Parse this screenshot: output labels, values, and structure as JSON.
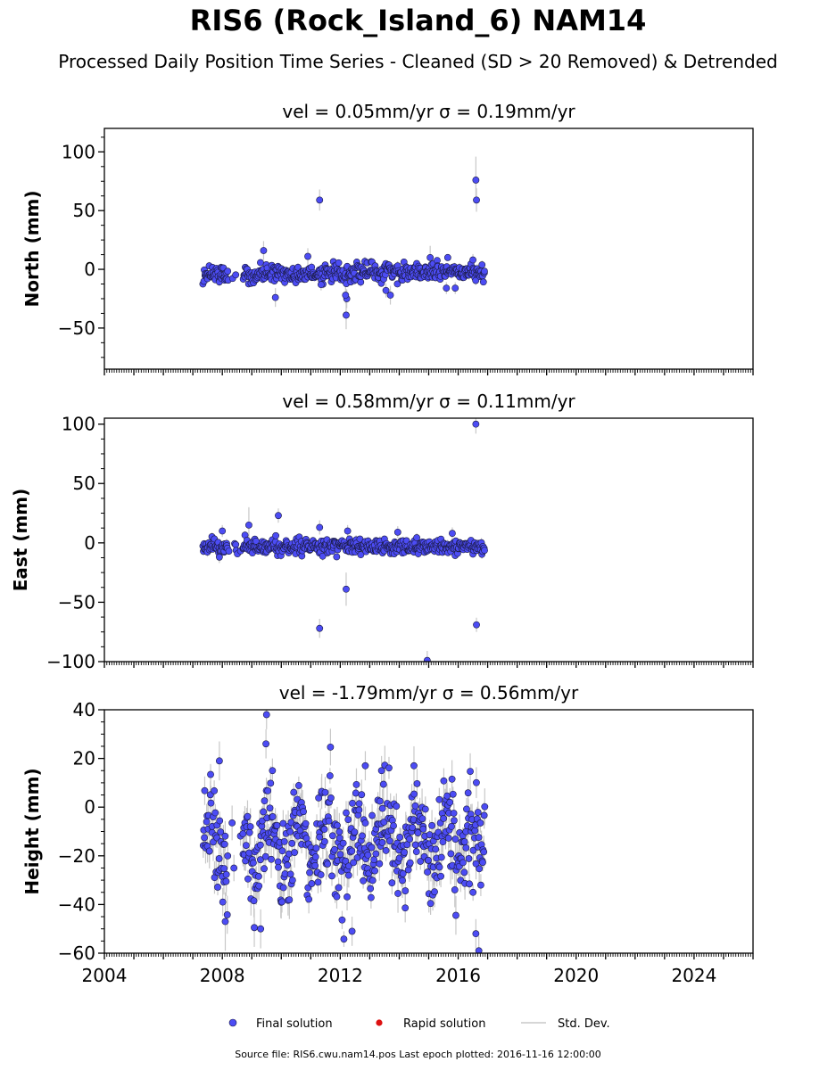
{
  "title": "RIS6 (Rock_Island_6) NAM14",
  "subtitle": "Processed Daily Position Time Series - Cleaned (SD > 20 Removed) & Detrended",
  "footer": "Source file: RIS6.cwu.nam14.pos  Last epoch plotted: 2016-11-16 12:00:00",
  "colors": {
    "final": "#4c4cf4",
    "rapid": "#dd1111",
    "std": "#c8c8c8",
    "outline": "#1a1a40"
  },
  "legend": {
    "placement": "bottom-center",
    "final": "Final solution",
    "rapid": "Rapid solution",
    "std": "Std. Dev."
  },
  "chart_data": [
    {
      "type": "scatter",
      "panel": "north",
      "title": "vel = 0.05mm/yr   σ = 0.19mm/yr",
      "ylabel": "North (mm)",
      "xlim": [
        2004,
        2026
      ],
      "ylim": [
        -85,
        120
      ],
      "yticks": [
        -50,
        0,
        50,
        100
      ],
      "ytick_labels": [
        "−50",
        "0",
        "50",
        "100"
      ],
      "x_range": [
        2007.35,
        2016.9
      ],
      "band_center": -3,
      "band_spread": 3.5,
      "outliers": [
        {
          "x": 2011.3,
          "y": 59,
          "err": 9
        },
        {
          "x": 2016.6,
          "y": 76,
          "err": 20
        },
        {
          "x": 2016.62,
          "y": 59,
          "err": 10
        },
        {
          "x": 2012.2,
          "y": -39,
          "err": 12
        },
        {
          "x": 2012.22,
          "y": -25,
          "err": 8
        },
        {
          "x": 2012.18,
          "y": -22,
          "err": 7
        },
        {
          "x": 2009.8,
          "y": -24,
          "err": 8
        },
        {
          "x": 2013.7,
          "y": -22,
          "err": 8
        },
        {
          "x": 2013.55,
          "y": -18,
          "err": 6
        },
        {
          "x": 2009.4,
          "y": 16,
          "err": 8
        },
        {
          "x": 2010.9,
          "y": 11,
          "err": 7
        },
        {
          "x": 2015.05,
          "y": 10,
          "err": 10
        },
        {
          "x": 2016.5,
          "y": 8,
          "err": 5
        },
        {
          "x": 2015.6,
          "y": -16,
          "err": 5
        },
        {
          "x": 2015.9,
          "y": -16,
          "err": 5
        },
        {
          "x": 2011.35,
          "y": -13,
          "err": 5
        }
      ]
    },
    {
      "type": "scatter",
      "panel": "east",
      "title": "vel = 0.58mm/yr   σ = 0.11mm/yr",
      "ylabel": "East (mm)",
      "xlim": [
        2004,
        2026
      ],
      "ylim": [
        -100,
        105
      ],
      "yticks": [
        -100,
        -50,
        0,
        50,
        100
      ],
      "ytick_labels": [
        "−100",
        "−50",
        "0",
        "50",
        "100"
      ],
      "x_range": [
        2007.35,
        2016.9
      ],
      "band_center": -3,
      "band_spread": 3,
      "outliers": [
        {
          "x": 2016.6,
          "y": 100,
          "err": 8
        },
        {
          "x": 2016.62,
          "y": -69,
          "err": 6
        },
        {
          "x": 2011.3,
          "y": -72,
          "err": 8
        },
        {
          "x": 2012.2,
          "y": -39,
          "err": 14
        },
        {
          "x": 2014.95,
          "y": -99,
          "err": 8
        },
        {
          "x": 2009.9,
          "y": 23,
          "err": 6
        },
        {
          "x": 2008.9,
          "y": 15,
          "err": 15
        },
        {
          "x": 2011.3,
          "y": 13,
          "err": 6
        },
        {
          "x": 2012.25,
          "y": 10,
          "err": 5
        },
        {
          "x": 2008.0,
          "y": 10,
          "err": 5
        },
        {
          "x": 2013.95,
          "y": 9,
          "err": 5
        },
        {
          "x": 2015.8,
          "y": 8,
          "err": 5
        },
        {
          "x": 2007.9,
          "y": -12,
          "err": 5
        }
      ]
    },
    {
      "type": "scatter",
      "panel": "height",
      "title": "vel = -1.79mm/yr   σ = 0.56mm/yr",
      "ylabel": "Height (mm)",
      "xlim": [
        2004,
        2026
      ],
      "ylim": [
        -60,
        40
      ],
      "yticks": [
        -60,
        -40,
        -20,
        0,
        20,
        40
      ],
      "ytick_labels": [
        "−60",
        "−40",
        "−20",
        "0",
        "20",
        "40"
      ],
      "xticks": [
        2004,
        2008,
        2012,
        2016,
        2020,
        2024
      ],
      "xtick_labels": [
        "2004",
        "2008",
        "2012",
        "2016",
        "2020",
        "2024"
      ],
      "x_range": [
        2007.35,
        2016.9
      ],
      "band_center": -14,
      "band_spread": 10,
      "outliers": [
        {
          "x": 2009.5,
          "y": 38,
          "err": 6
        },
        {
          "x": 2009.48,
          "y": 26,
          "err": 6
        },
        {
          "x": 2007.9,
          "y": 19,
          "err": 8
        },
        {
          "x": 2009.7,
          "y": 15,
          "err": 5
        },
        {
          "x": 2008.1,
          "y": -47,
          "err": 12
        },
        {
          "x": 2009.3,
          "y": -50,
          "err": 8
        },
        {
          "x": 2012.4,
          "y": -51,
          "err": 6
        },
        {
          "x": 2016.7,
          "y": -59,
          "err": 6
        },
        {
          "x": 2016.6,
          "y": -52,
          "err": 6
        },
        {
          "x": 2014.5,
          "y": 17,
          "err": 8
        },
        {
          "x": 2013.4,
          "y": 15,
          "err": 6
        },
        {
          "x": 2012.85,
          "y": 17,
          "err": 6
        }
      ]
    }
  ]
}
